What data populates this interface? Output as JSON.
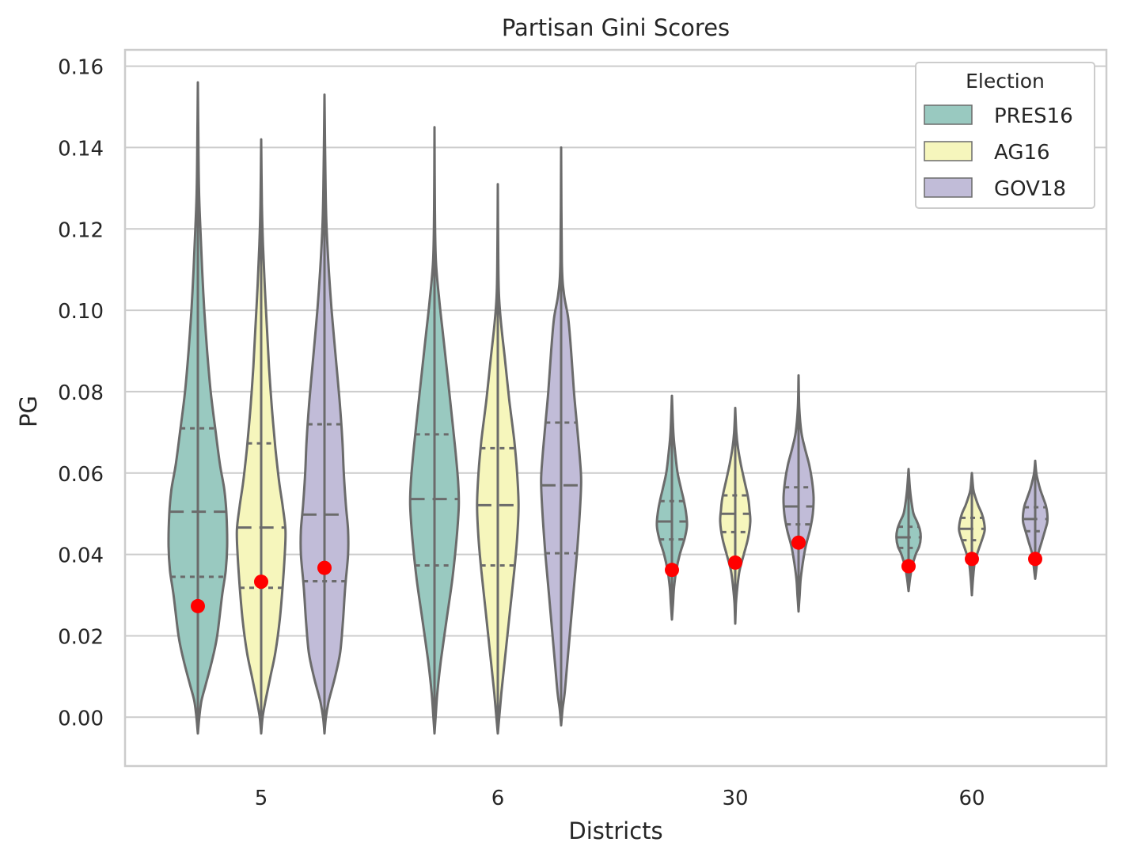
{
  "chart_data": {
    "type": "violin",
    "title": "Partisan Gini Scores",
    "xlabel": "Districts",
    "ylabel": "PG",
    "categories": [
      "5",
      "6",
      "30",
      "60"
    ],
    "ylim": [
      -0.012,
      0.164
    ],
    "yticks": [
      0.0,
      0.02,
      0.04,
      0.06,
      0.08,
      0.1,
      0.12,
      0.14,
      0.16
    ],
    "ytick_labels": [
      "0.00",
      "0.02",
      "0.04",
      "0.06",
      "0.08",
      "0.10",
      "0.12",
      "0.14",
      "0.16"
    ],
    "grid": true,
    "legend": {
      "title": "Election",
      "placement": "top-right"
    },
    "series": [
      {
        "name": "PRES16",
        "color": "#99c9c0",
        "violins": [
          {
            "min": -0.004,
            "max": 0.156,
            "q1": 0.0345,
            "median": 0.0505,
            "q3": 0.071,
            "profile": [
              [
                -0.004,
                0.0
              ],
              [
                0.0,
                0.004
              ],
              [
                0.004,
                0.01
              ],
              [
                0.008,
                0.022
              ],
              [
                0.014,
                0.04
              ],
              [
                0.02,
                0.054
              ],
              [
                0.03,
                0.068
              ],
              [
                0.036,
                0.078
              ],
              [
                0.042,
                0.082
              ],
              [
                0.05,
                0.08
              ],
              [
                0.056,
                0.074
              ],
              [
                0.062,
                0.062
              ],
              [
                0.07,
                0.05
              ],
              [
                0.08,
                0.036
              ],
              [
                0.09,
                0.026
              ],
              [
                0.1,
                0.018
              ],
              [
                0.11,
                0.012
              ],
              [
                0.12,
                0.007
              ],
              [
                0.13,
                0.003
              ],
              [
                0.145,
                0.001
              ],
              [
                0.156,
                0.0
              ]
            ],
            "actual": 0.0273
          },
          {
            "min": -0.004,
            "max": 0.145,
            "q1": 0.0373,
            "median": 0.0536,
            "q3": 0.0695,
            "profile": [
              [
                -0.004,
                0.0
              ],
              [
                0.0,
                0.003
              ],
              [
                0.006,
                0.008
              ],
              [
                0.014,
                0.018
              ],
              [
                0.024,
                0.034
              ],
              [
                0.034,
                0.05
              ],
              [
                0.044,
                0.062
              ],
              [
                0.052,
                0.068
              ],
              [
                0.058,
                0.066
              ],
              [
                0.066,
                0.058
              ],
              [
                0.076,
                0.046
              ],
              [
                0.086,
                0.034
              ],
              [
                0.094,
                0.024
              ],
              [
                0.102,
                0.014
              ],
              [
                0.112,
                0.004
              ],
              [
                0.125,
                0.001
              ],
              [
                0.145,
                0.0
              ]
            ],
            "actual": null
          },
          {
            "min": 0.024,
            "max": 0.079,
            "q1": 0.0437,
            "median": 0.0481,
            "q3": 0.0531,
            "profile": [
              [
                0.024,
                0.0
              ],
              [
                0.028,
                0.003
              ],
              [
                0.032,
                0.006
              ],
              [
                0.036,
                0.012
              ],
              [
                0.04,
                0.022
              ],
              [
                0.044,
                0.036
              ],
              [
                0.047,
                0.042
              ],
              [
                0.05,
                0.04
              ],
              [
                0.053,
                0.034
              ],
              [
                0.056,
                0.026
              ],
              [
                0.06,
                0.016
              ],
              [
                0.065,
                0.009
              ],
              [
                0.07,
                0.004
              ],
              [
                0.079,
                0.0
              ]
            ],
            "actual": 0.0362
          },
          {
            "min": 0.031,
            "max": 0.061,
            "q1": 0.0416,
            "median": 0.0442,
            "q3": 0.0468,
            "profile": [
              [
                0.031,
                0.0
              ],
              [
                0.034,
                0.004
              ],
              [
                0.037,
                0.01
              ],
              [
                0.04,
                0.02
              ],
              [
                0.042,
                0.03
              ],
              [
                0.044,
                0.034
              ],
              [
                0.046,
                0.032
              ],
              [
                0.048,
                0.024
              ],
              [
                0.05,
                0.014
              ],
              [
                0.053,
                0.008
              ],
              [
                0.056,
                0.004
              ],
              [
                0.061,
                0.0
              ]
            ],
            "actual": 0.0371
          }
        ]
      },
      {
        "name": "AG16",
        "color": "#f6f6bc",
        "violins": [
          {
            "min": -0.004,
            "max": 0.142,
            "q1": 0.0318,
            "median": 0.0466,
            "q3": 0.0673,
            "profile": [
              [
                -0.004,
                0.0
              ],
              [
                0.0,
                0.004
              ],
              [
                0.004,
                0.012
              ],
              [
                0.01,
                0.026
              ],
              [
                0.016,
                0.04
              ],
              [
                0.024,
                0.052
              ],
              [
                0.032,
                0.06
              ],
              [
                0.04,
                0.066
              ],
              [
                0.046,
                0.068
              ],
              [
                0.052,
                0.06
              ],
              [
                0.058,
                0.05
              ],
              [
                0.066,
                0.04
              ],
              [
                0.076,
                0.03
              ],
              [
                0.086,
                0.022
              ],
              [
                0.096,
                0.016
              ],
              [
                0.106,
                0.01
              ],
              [
                0.116,
                0.005
              ],
              [
                0.126,
                0.002
              ],
              [
                0.142,
                0.0
              ]
            ],
            "actual": 0.0333
          },
          {
            "min": -0.004,
            "max": 0.131,
            "q1": 0.0373,
            "median": 0.0521,
            "q3": 0.0661,
            "profile": [
              [
                -0.004,
                0.0
              ],
              [
                0.0,
                0.004
              ],
              [
                0.006,
                0.01
              ],
              [
                0.016,
                0.022
              ],
              [
                0.026,
                0.034
              ],
              [
                0.036,
                0.046
              ],
              [
                0.044,
                0.054
              ],
              [
                0.052,
                0.058
              ],
              [
                0.06,
                0.054
              ],
              [
                0.068,
                0.046
              ],
              [
                0.078,
                0.032
              ],
              [
                0.088,
                0.02
              ],
              [
                0.096,
                0.01
              ],
              [
                0.104,
                0.003
              ],
              [
                0.115,
                0.001
              ],
              [
                0.131,
                0.0
              ]
            ],
            "actual": null
          },
          {
            "min": 0.023,
            "max": 0.076,
            "q1": 0.0455,
            "median": 0.05,
            "q3": 0.0545,
            "profile": [
              [
                0.023,
                0.0
              ],
              [
                0.028,
                0.002
              ],
              [
                0.032,
                0.006
              ],
              [
                0.036,
                0.012
              ],
              [
                0.04,
                0.024
              ],
              [
                0.044,
                0.036
              ],
              [
                0.048,
                0.042
              ],
              [
                0.051,
                0.04
              ],
              [
                0.054,
                0.036
              ],
              [
                0.058,
                0.026
              ],
              [
                0.062,
                0.016
              ],
              [
                0.066,
                0.008
              ],
              [
                0.07,
                0.003
              ],
              [
                0.076,
                0.0
              ]
            ],
            "actual": 0.038
          },
          {
            "min": 0.03,
            "max": 0.06,
            "q1": 0.0435,
            "median": 0.0463,
            "q3": 0.049,
            "profile": [
              [
                0.03,
                0.0
              ],
              [
                0.034,
                0.003
              ],
              [
                0.038,
                0.008
              ],
              [
                0.041,
                0.018
              ],
              [
                0.044,
                0.03
              ],
              [
                0.046,
                0.036
              ],
              [
                0.048,
                0.034
              ],
              [
                0.05,
                0.028
              ],
              [
                0.052,
                0.018
              ],
              [
                0.054,
                0.01
              ],
              [
                0.056,
                0.004
              ],
              [
                0.06,
                0.0
              ]
            ],
            "actual": 0.0389
          }
        ]
      },
      {
        "name": "GOV18",
        "color": "#c1bcd8",
        "violins": [
          {
            "min": -0.004,
            "max": 0.153,
            "q1": 0.0334,
            "median": 0.0498,
            "q3": 0.072,
            "profile": [
              [
                -0.004,
                0.0
              ],
              [
                0.0,
                0.004
              ],
              [
                0.004,
                0.012
              ],
              [
                0.01,
                0.03
              ],
              [
                0.016,
                0.044
              ],
              [
                0.024,
                0.052
              ],
              [
                0.032,
                0.058
              ],
              [
                0.04,
                0.066
              ],
              [
                0.046,
                0.066
              ],
              [
                0.052,
                0.06
              ],
              [
                0.06,
                0.054
              ],
              [
                0.068,
                0.05
              ],
              [
                0.078,
                0.042
              ],
              [
                0.09,
                0.03
              ],
              [
                0.1,
                0.02
              ],
              [
                0.11,
                0.012
              ],
              [
                0.12,
                0.006
              ],
              [
                0.13,
                0.003
              ],
              [
                0.153,
                0.0
              ]
            ],
            "actual": 0.0367
          },
          {
            "min": -0.002,
            "max": 0.14,
            "q1": 0.0403,
            "median": 0.057,
            "q3": 0.0724,
            "profile": [
              [
                -0.002,
                0.0
              ],
              [
                0.002,
                0.004
              ],
              [
                0.006,
                0.01
              ],
              [
                0.012,
                0.016
              ],
              [
                0.02,
                0.024
              ],
              [
                0.03,
                0.034
              ],
              [
                0.04,
                0.044
              ],
              [
                0.05,
                0.052
              ],
              [
                0.058,
                0.056
              ],
              [
                0.064,
                0.052
              ],
              [
                0.072,
                0.044
              ],
              [
                0.08,
                0.036
              ],
              [
                0.09,
                0.028
              ],
              [
                0.098,
                0.02
              ],
              [
                0.104,
                0.008
              ],
              [
                0.112,
                0.002
              ],
              [
                0.14,
                0.0
              ]
            ],
            "actual": null
          },
          {
            "min": 0.026,
            "max": 0.084,
            "q1": 0.0474,
            "median": 0.0518,
            "q3": 0.0565,
            "profile": [
              [
                0.026,
                0.0
              ],
              [
                0.03,
                0.003
              ],
              [
                0.034,
                0.006
              ],
              [
                0.038,
                0.012
              ],
              [
                0.042,
                0.02
              ],
              [
                0.046,
                0.032
              ],
              [
                0.05,
                0.04
              ],
              [
                0.054,
                0.042
              ],
              [
                0.058,
                0.038
              ],
              [
                0.062,
                0.03
              ],
              [
                0.066,
                0.018
              ],
              [
                0.07,
                0.008
              ],
              [
                0.076,
                0.002
              ],
              [
                0.084,
                0.0
              ]
            ],
            "actual": 0.0429
          },
          {
            "min": 0.034,
            "max": 0.063,
            "q1": 0.0457,
            "median": 0.0487,
            "q3": 0.0516,
            "profile": [
              [
                0.034,
                0.0
              ],
              [
                0.037,
                0.004
              ],
              [
                0.04,
                0.008
              ],
              [
                0.043,
                0.018
              ],
              [
                0.046,
                0.028
              ],
              [
                0.048,
                0.034
              ],
              [
                0.05,
                0.034
              ],
              [
                0.052,
                0.03
              ],
              [
                0.054,
                0.022
              ],
              [
                0.056,
                0.014
              ],
              [
                0.058,
                0.008
              ],
              [
                0.06,
                0.003
              ],
              [
                0.063,
                0.0
              ]
            ],
            "actual": 0.0389
          }
        ]
      }
    ]
  }
}
